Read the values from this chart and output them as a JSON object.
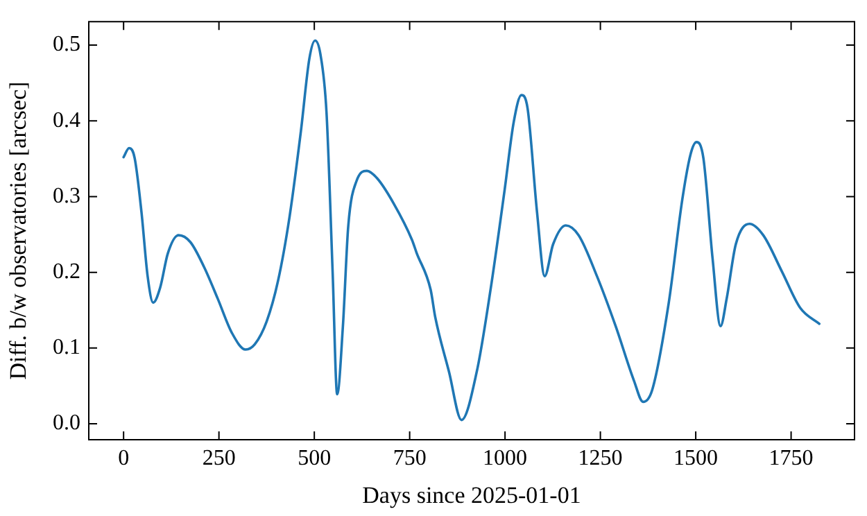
{
  "chart_data": {
    "type": "line",
    "xlabel": "Days since 2025-01-01",
    "ylabel": "Diff. b/w observatories [arcsec]",
    "xlim": [
      -91.25,
      1916.25
    ],
    "ylim": [
      -0.021,
      0.531
    ],
    "xticks": [
      0,
      250,
      500,
      750,
      1000,
      1250,
      1500,
      1750
    ],
    "yticks": [
      {
        "value": 0,
        "label": "0.0"
      },
      0.1,
      0.2,
      0.3,
      0.4,
      0.5
    ],
    "grid": false,
    "legend": false,
    "marker": "none",
    "line_style": "solid",
    "series": [
      {
        "color": "#1f77b4",
        "x": [
          0,
          14.5,
          29,
          47,
          63,
          77.6,
          96,
          116,
          144,
          175,
          211,
          247,
          284,
          320,
          344,
          375,
          405,
          435,
          465,
          487,
          502,
          516,
          532,
          548,
          560,
          575,
          589,
          611,
          638,
          665,
          708,
          756,
          768,
          805,
          817,
          853,
          886,
          926,
          962,
          999,
          1023,
          1043,
          1059,
          1084,
          1104,
          1126,
          1159,
          1193,
          1241,
          1290,
          1338,
          1362,
          1386,
          1429,
          1465,
          1487,
          1502,
          1520,
          1544,
          1565,
          1581,
          1605,
          1641,
          1677,
          1726,
          1774,
          1824
        ],
        "values": [
          0.352,
          0.364,
          0.351,
          0.279,
          0.195,
          0.16,
          0.18,
          0.225,
          0.249,
          0.24,
          0.207,
          0.165,
          0.12,
          0.098,
          0.105,
          0.135,
          0.189,
          0.273,
          0.387,
          0.482,
          0.506,
          0.488,
          0.411,
          0.201,
          0.039,
          0.129,
          0.261,
          0.321,
          0.334,
          0.324,
          0.291,
          0.243,
          0.226,
          0.177,
          0.141,
          0.069,
          0.005,
          0.069,
          0.177,
          0.309,
          0.399,
          0.434,
          0.417,
          0.279,
          0.195,
          0.237,
          0.262,
          0.249,
          0.195,
          0.129,
          0.057,
          0.029,
          0.045,
          0.159,
          0.297,
          0.357,
          0.372,
          0.351,
          0.219,
          0.129,
          0.165,
          0.237,
          0.264,
          0.249,
          0.201,
          0.153,
          0.132
        ]
      }
    ]
  }
}
